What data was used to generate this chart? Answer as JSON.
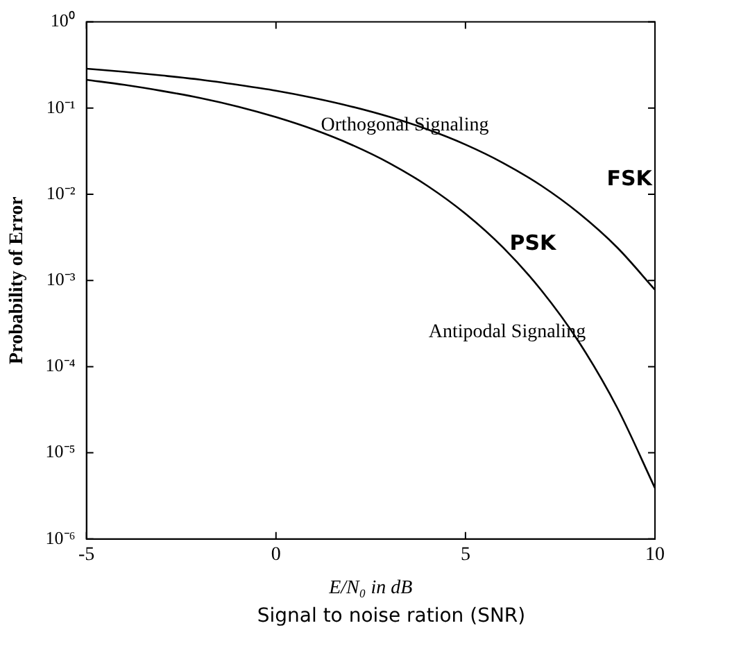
{
  "chart_data": {
    "type": "line",
    "xlabel": "E/N₀ in dB",
    "ylabel": "Probability of Error",
    "log": "y",
    "x": [
      -5,
      -4,
      -3,
      -2,
      -1,
      0,
      1,
      2,
      3,
      4,
      5,
      6,
      7,
      8,
      9,
      10
    ],
    "series": [
      {
        "color": "#000000",
        "values": [
          0.287,
          0.264,
          0.239,
          0.214,
          0.186,
          0.159,
          0.131,
          0.104,
          0.0789,
          0.0565,
          0.0377,
          0.023,
          0.0126,
          0.006,
          0.00242,
          0.00078
        ]
      },
      {
        "color": "#000000",
        "values": [
          0.213,
          0.186,
          0.158,
          0.131,
          0.104,
          0.0786,
          0.0563,
          0.0375,
          0.0229,
          0.0125,
          0.00595,
          0.00239,
          0.00077,
          0.000191,
          3.36e-05,
          3.9e-06
        ]
      }
    ],
    "xlim": [
      -5,
      10
    ],
    "xticks": [
      -5,
      0,
      5,
      10
    ],
    "ylim": [
      1e-06,
      1
    ],
    "yticks": [
      {
        "value": 1,
        "label": "10⁰"
      },
      {
        "value": 0.1,
        "label": "10⁻¹"
      },
      {
        "value": 0.01,
        "label": "10⁻²"
      },
      {
        "value": 0.001,
        "label": "10⁻³"
      },
      {
        "value": 0.0001,
        "label": "10⁻⁴"
      },
      {
        "value": 1e-05,
        "label": "10⁻⁵"
      },
      {
        "value": 1e-06,
        "label": "10⁻⁶"
      }
    ],
    "grid": false,
    "legend": false,
    "marker": "none",
    "line_style": "solid",
    "annotations": [
      "Orthogonal Signaling",
      "FSK",
      "Antipodal Signaling",
      "PSK",
      "Signal to noise ration (SNR)"
    ]
  }
}
